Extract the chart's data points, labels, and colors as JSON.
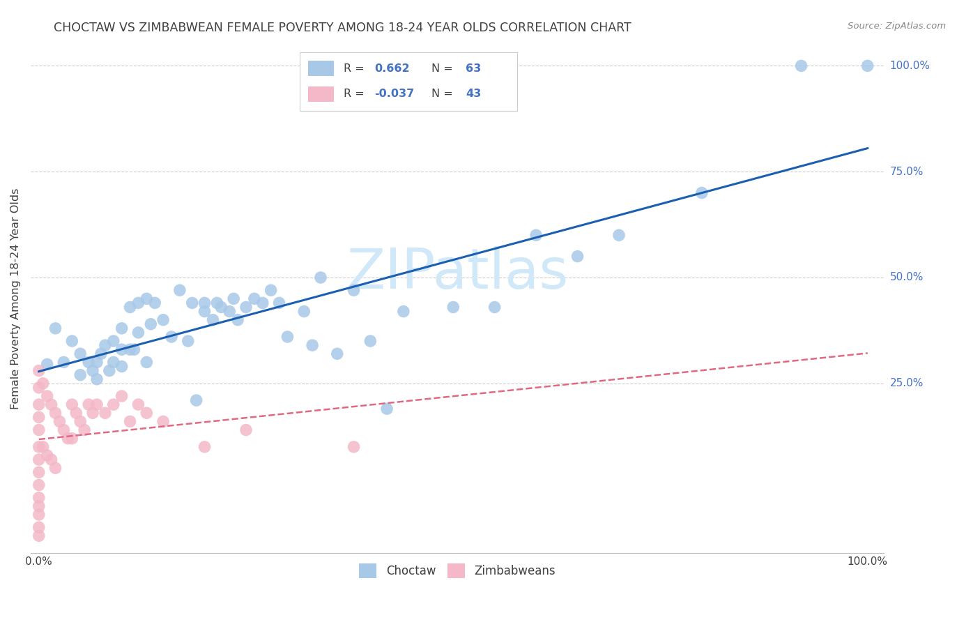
{
  "title": "CHOCTAW VS ZIMBABWEAN FEMALE POVERTY AMONG 18-24 YEAR OLDS CORRELATION CHART",
  "source": "Source: ZipAtlas.com",
  "ylabel": "Female Poverty Among 18-24 Year Olds",
  "choctaw_R": 0.662,
  "choctaw_N": 63,
  "zimbabwean_R": -0.037,
  "zimbabwean_N": 43,
  "choctaw_color": "#a8c8e8",
  "choctaw_line_color": "#1a5fb0",
  "zimbabwean_color": "#f4b8c8",
  "zimbabwean_line_color": "#e06880",
  "watermark_color": "#d0e8f8",
  "background_color": "#ffffff",
  "grid_color": "#cccccc",
  "label_color": "#4472c4",
  "text_color": "#404040",
  "choctaw_x": [
    0.01,
    0.02,
    0.03,
    0.04,
    0.05,
    0.05,
    0.06,
    0.065,
    0.07,
    0.07,
    0.075,
    0.08,
    0.085,
    0.09,
    0.09,
    0.1,
    0.1,
    0.1,
    0.11,
    0.11,
    0.115,
    0.12,
    0.12,
    0.13,
    0.13,
    0.135,
    0.14,
    0.15,
    0.16,
    0.17,
    0.18,
    0.185,
    0.19,
    0.2,
    0.2,
    0.21,
    0.215,
    0.22,
    0.23,
    0.235,
    0.24,
    0.25,
    0.26,
    0.27,
    0.28,
    0.29,
    0.3,
    0.32,
    0.33,
    0.34,
    0.36,
    0.38,
    0.4,
    0.42,
    0.44,
    0.5,
    0.55,
    0.6,
    0.65,
    0.7,
    0.8,
    0.92,
    1.0
  ],
  "choctaw_y": [
    0.295,
    0.38,
    0.3,
    0.35,
    0.27,
    0.32,
    0.3,
    0.28,
    0.26,
    0.3,
    0.32,
    0.34,
    0.28,
    0.3,
    0.35,
    0.29,
    0.33,
    0.38,
    0.33,
    0.43,
    0.33,
    0.37,
    0.44,
    0.3,
    0.45,
    0.39,
    0.44,
    0.4,
    0.36,
    0.47,
    0.35,
    0.44,
    0.21,
    0.44,
    0.42,
    0.4,
    0.44,
    0.43,
    0.42,
    0.45,
    0.4,
    0.43,
    0.45,
    0.44,
    0.47,
    0.44,
    0.36,
    0.42,
    0.34,
    0.5,
    0.32,
    0.47,
    0.35,
    0.19,
    0.42,
    0.43,
    0.43,
    0.6,
    0.55,
    0.6,
    0.7,
    1.0,
    1.0
  ],
  "zimbabwean_x": [
    0.0,
    0.0,
    0.0,
    0.0,
    0.0,
    0.0,
    0.0,
    0.0,
    0.0,
    0.0,
    0.0,
    0.0,
    0.0,
    0.0,
    0.005,
    0.005,
    0.01,
    0.01,
    0.015,
    0.015,
    0.02,
    0.02,
    0.025,
    0.03,
    0.035,
    0.04,
    0.04,
    0.045,
    0.05,
    0.055,
    0.06,
    0.065,
    0.07,
    0.08,
    0.09,
    0.1,
    0.11,
    0.12,
    0.13,
    0.15,
    0.2,
    0.25,
    0.38
  ],
  "zimbabwean_y": [
    0.28,
    0.24,
    0.2,
    0.17,
    0.14,
    0.1,
    0.07,
    0.04,
    0.01,
    -0.02,
    -0.04,
    -0.06,
    -0.09,
    -0.11,
    0.25,
    0.1,
    0.22,
    0.08,
    0.2,
    0.07,
    0.18,
    0.05,
    0.16,
    0.14,
    0.12,
    0.2,
    0.12,
    0.18,
    0.16,
    0.14,
    0.2,
    0.18,
    0.2,
    0.18,
    0.2,
    0.22,
    0.16,
    0.2,
    0.18,
    0.16,
    0.1,
    0.14,
    0.1
  ],
  "ytick_right_positions": [
    0.25,
    0.5,
    0.75,
    1.0
  ],
  "ytick_right_labels": [
    "25.0%",
    "50.0%",
    "75.0%",
    "100.0%"
  ],
  "ymin": -0.15,
  "ymax": 1.05
}
